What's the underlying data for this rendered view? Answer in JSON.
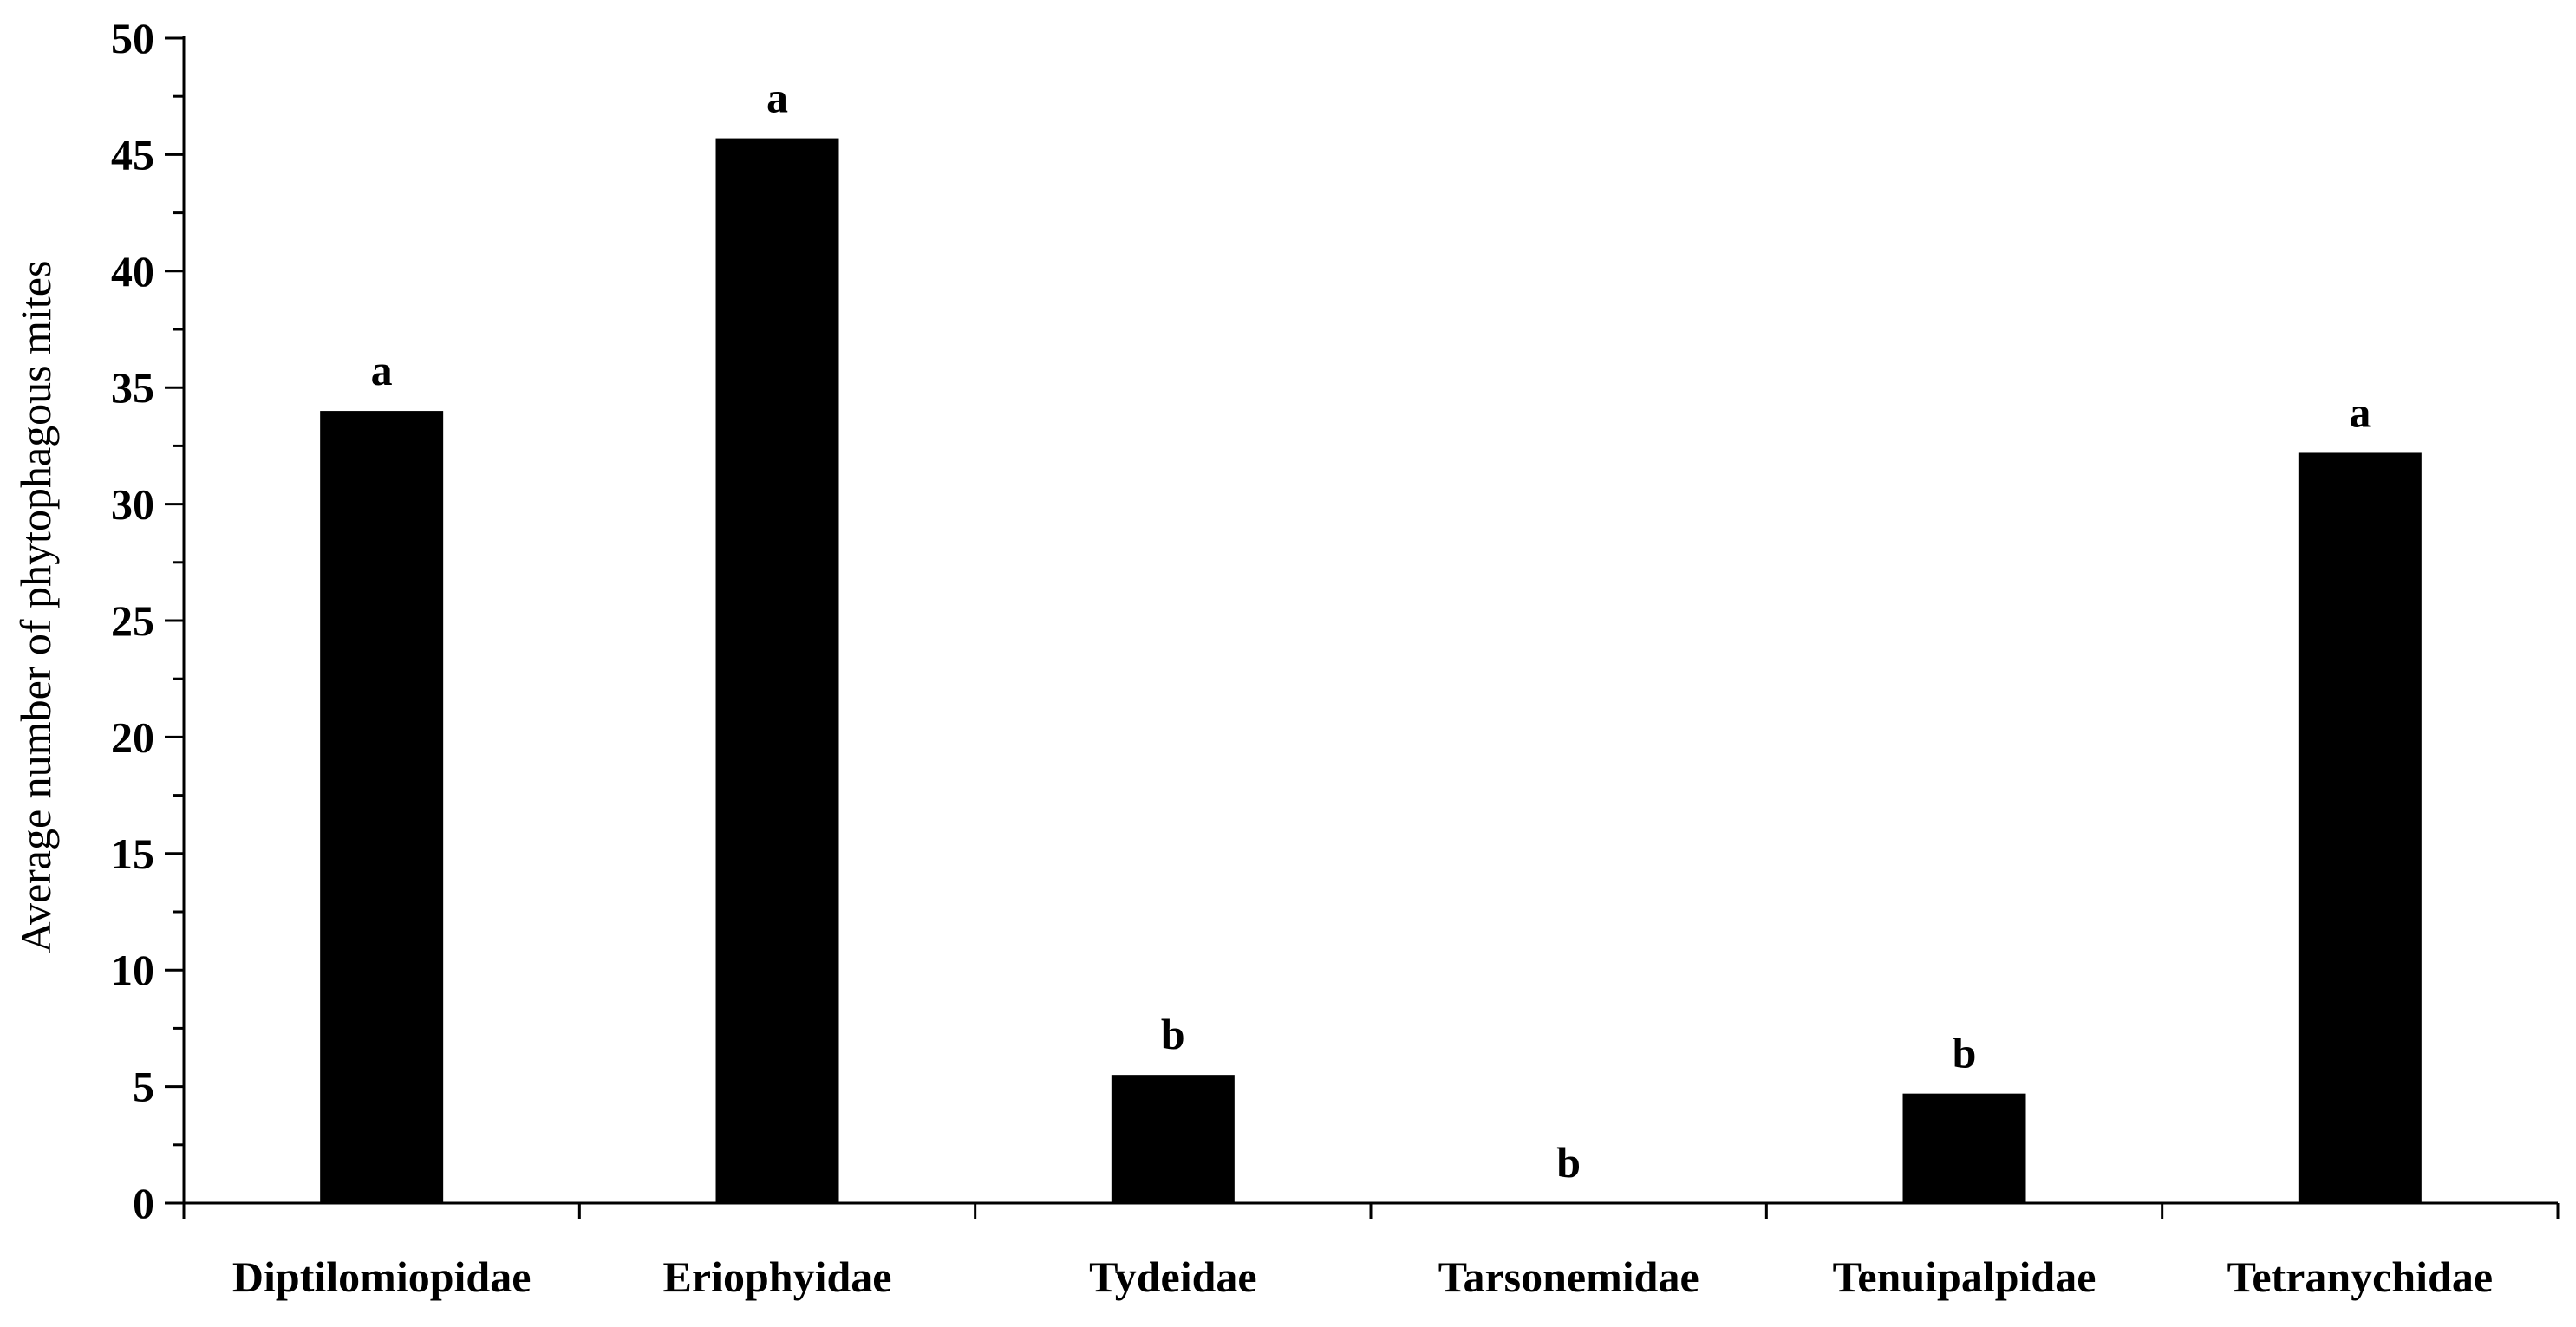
{
  "chart_data": {
    "type": "bar",
    "categories": [
      "Diptilomiopidae",
      "Eriophyidae",
      "Tydeidae",
      "Tarsonemidae",
      "Tenuipalpidae",
      "Tetranychidae"
    ],
    "values": [
      34.0,
      45.7,
      5.5,
      0,
      4.7,
      32.2
    ],
    "significance_labels": [
      "a",
      "a",
      "b",
      "b",
      "b",
      "a"
    ],
    "title": "",
    "xlabel": "",
    "ylabel": "Average number of phytophagous mites",
    "ylim": [
      0,
      50
    ],
    "yticks": [
      0,
      5,
      10,
      15,
      20,
      25,
      30,
      35,
      40,
      45,
      50
    ],
    "grid": false,
    "bar_color": "#000000"
  }
}
